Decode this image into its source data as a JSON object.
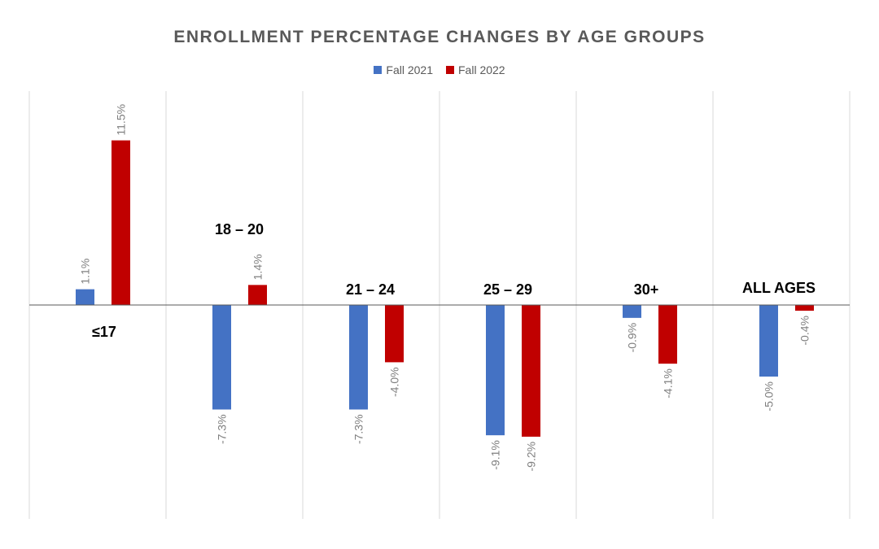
{
  "chart_data": {
    "type": "bar",
    "title": "ENROLLMENT PERCENTAGE CHANGES BY AGE GROUPS",
    "categories": [
      "≤17",
      "18 – 20",
      "21 – 24",
      "25 – 29",
      "30+",
      "ALL AGES"
    ],
    "series": [
      {
        "name": "Fall 2021",
        "color": "#4472C4",
        "values": [
          1.1,
          -7.3,
          -7.3,
          -9.1,
          -0.9,
          -5.0
        ]
      },
      {
        "name": "Fall 2022",
        "color": "#C00000",
        "values": [
          11.5,
          1.4,
          -4.0,
          -9.2,
          -4.1,
          -0.4
        ]
      }
    ],
    "data_labels": [
      [
        "1.1%",
        "-7.3%",
        "-7.3%",
        "-9.1%",
        "-0.9%",
        "-5.0%"
      ],
      [
        "11.5%",
        "1.4%",
        "-4.0%",
        "-9.2%",
        "-4.1%",
        "-0.4%"
      ]
    ],
    "ylim": [
      -15,
      15
    ],
    "grid": "vertical separators between categories",
    "legend_position": "top"
  }
}
